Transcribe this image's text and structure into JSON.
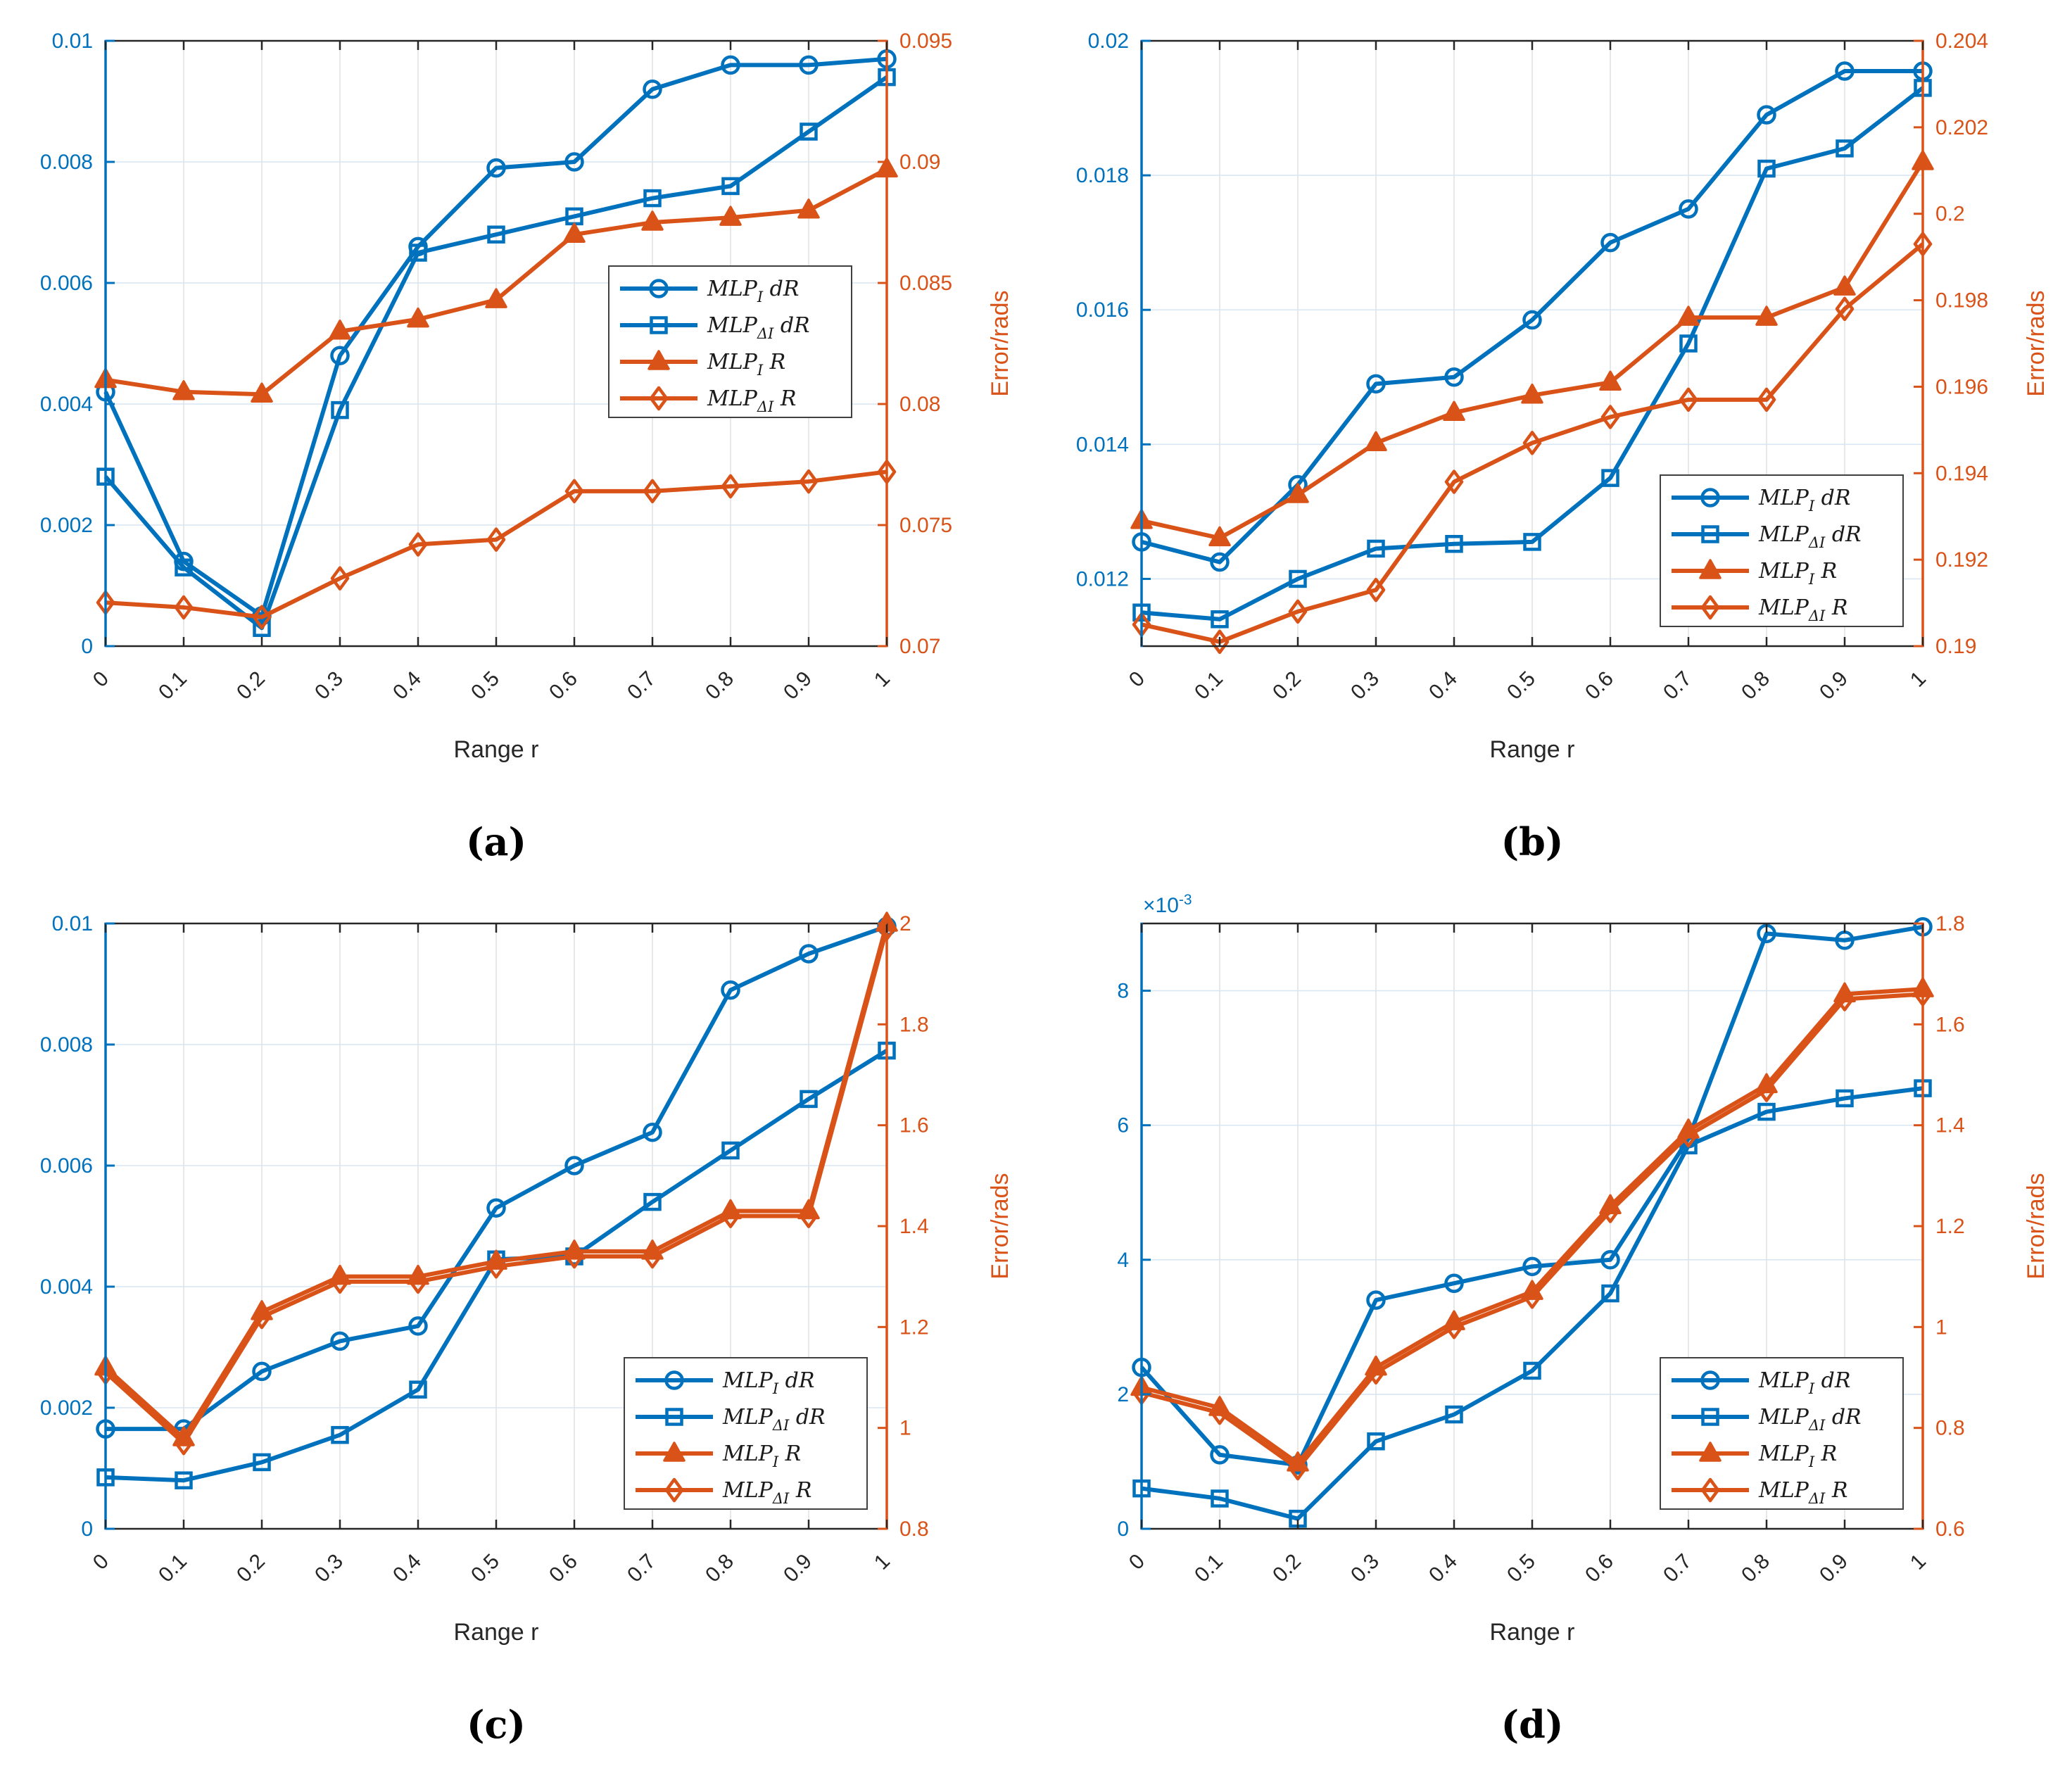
{
  "page": {
    "background": "#FFFFFF",
    "description": "Four dual-axis MATLAB-style line plots comparing MLP errors over range r",
    "colors": {
      "left_axis_blue": "#0072BD",
      "right_axis_orange": "#D95319",
      "x_tick_color": "#262626"
    }
  },
  "legend_labels": [
    {
      "base": "MLP",
      "sub": "I",
      "rest": "dR"
    },
    {
      "base": "MLP",
      "sub": "ΔI",
      "rest": "dR"
    },
    {
      "base": "MLP",
      "sub": "I",
      "rest": "R"
    },
    {
      "base": "MLP",
      "sub": "ΔI",
      "rest": "R"
    }
  ],
  "chart_data": [
    {
      "id": "a",
      "caption": "(a)",
      "type": "line",
      "xlabel": "Range r",
      "ylabel_right": "Error/rads",
      "x": [
        0,
        0.1,
        0.2,
        0.3,
        0.4,
        0.5,
        0.6,
        0.7,
        0.8,
        0.9,
        1
      ],
      "x_tick_labels": [
        "0",
        "0.1",
        "0.2",
        "0.3",
        "0.4",
        "0.5",
        "0.6",
        "0.7",
        "0.8",
        "0.9",
        "1"
      ],
      "left_axis": {
        "color": "#0072BD",
        "lim": [
          0,
          0.01
        ],
        "ticks": [
          0,
          0.002,
          0.004,
          0.006,
          0.008,
          0.01
        ],
        "tick_labels": [
          "0",
          "0.002",
          "0.004",
          "0.006",
          "0.008",
          "0.01"
        ],
        "multiplier": ""
      },
      "right_axis": {
        "color": "#D95319",
        "lim": [
          0.07,
          0.095
        ],
        "ticks": [
          0.07,
          0.075,
          0.08,
          0.085,
          0.09,
          0.095
        ],
        "tick_labels": [
          "0.07",
          "0.075",
          "0.08",
          "0.085",
          "0.09",
          "0.095"
        ]
      },
      "legend_position": "right-center",
      "series": [
        {
          "name": "MLP_I dR",
          "legend_index": 0,
          "axis": "left",
          "marker": "circle",
          "color": "#0072BD",
          "values": [
            0.0042,
            0.0014,
            0.0005,
            0.0048,
            0.0066,
            0.0079,
            0.008,
            0.0092,
            0.0096,
            0.0096,
            0.0097
          ]
        },
        {
          "name": "MLP_ΔI dR",
          "legend_index": 1,
          "axis": "left",
          "marker": "square",
          "color": "#0072BD",
          "values": [
            0.0028,
            0.0013,
            0.0003,
            0.0039,
            0.0065,
            0.0068,
            0.0071,
            0.0074,
            0.0076,
            0.0085,
            0.0094
          ]
        },
        {
          "name": "MLP_I R",
          "legend_index": 2,
          "axis": "right",
          "marker": "triangle",
          "color": "#D95319",
          "values": [
            0.081,
            0.0805,
            0.0804,
            0.083,
            0.0835,
            0.0843,
            0.087,
            0.0875,
            0.0877,
            0.088,
            0.0897
          ]
        },
        {
          "name": "MLP_ΔI R",
          "legend_index": 3,
          "axis": "right",
          "marker": "diamond",
          "color": "#D95319",
          "values": [
            0.0718,
            0.0716,
            0.0712,
            0.0728,
            0.0742,
            0.0744,
            0.0764,
            0.0764,
            0.0766,
            0.0768,
            0.0772
          ]
        }
      ]
    },
    {
      "id": "b",
      "caption": "(b)",
      "type": "line",
      "xlabel": "Range r",
      "ylabel_right": "Error/rads",
      "x": [
        0,
        0.1,
        0.2,
        0.3,
        0.4,
        0.5,
        0.6,
        0.7,
        0.8,
        0.9,
        1
      ],
      "x_tick_labels": [
        "0",
        "0.1",
        "0.2",
        "0.3",
        "0.4",
        "0.5",
        "0.6",
        "0.7",
        "0.8",
        "0.9",
        "1"
      ],
      "left_axis": {
        "color": "#0072BD",
        "lim": [
          0.011,
          0.02
        ],
        "ticks": [
          0.012,
          0.014,
          0.016,
          0.018,
          0.02
        ],
        "tick_labels": [
          "0.012",
          "0.014",
          "0.016",
          "0.018",
          "0.02"
        ],
        "multiplier": ""
      },
      "right_axis": {
        "color": "#D95319",
        "lim": [
          0.19,
          0.204
        ],
        "ticks": [
          0.19,
          0.192,
          0.194,
          0.196,
          0.198,
          0.2,
          0.202,
          0.204
        ],
        "tick_labels": [
          "0.19",
          "0.192",
          "0.194",
          "0.196",
          "0.198",
          "0.2",
          "0.202",
          "0.204"
        ]
      },
      "legend_position": "bottom-right",
      "series": [
        {
          "name": "MLP_I dR",
          "legend_index": 0,
          "axis": "left",
          "marker": "circle",
          "color": "#0072BD",
          "values": [
            0.01255,
            0.01225,
            0.0134,
            0.0149,
            0.015,
            0.01585,
            0.017,
            0.0175,
            0.0189,
            0.01955,
            0.01955
          ]
        },
        {
          "name": "MLP_ΔI dR",
          "legend_index": 1,
          "axis": "left",
          "marker": "square",
          "color": "#0072BD",
          "values": [
            0.0115,
            0.0114,
            0.012,
            0.01245,
            0.01252,
            0.01255,
            0.0135,
            0.0155,
            0.0181,
            0.0184,
            0.0193
          ]
        },
        {
          "name": "MLP_I R",
          "legend_index": 2,
          "axis": "right",
          "marker": "triangle",
          "color": "#D95319",
          "values": [
            0.1929,
            0.1925,
            0.1935,
            0.1947,
            0.1954,
            0.1958,
            0.1961,
            0.1976,
            0.1976,
            0.1983,
            0.2012
          ]
        },
        {
          "name": "MLP_ΔI R",
          "legend_index": 3,
          "axis": "right",
          "marker": "diamond",
          "color": "#D95319",
          "values": [
            0.1905,
            0.1901,
            0.1908,
            0.1913,
            0.1938,
            0.1947,
            0.1953,
            0.1957,
            0.1957,
            0.1978,
            0.1993
          ]
        }
      ]
    },
    {
      "id": "c",
      "caption": "(c)",
      "type": "line",
      "xlabel": "Range r",
      "ylabel_right": "Error/rads",
      "x": [
        0,
        0.1,
        0.2,
        0.3,
        0.4,
        0.5,
        0.6,
        0.7,
        0.8,
        0.9,
        1
      ],
      "x_tick_labels": [
        "0",
        "0.1",
        "0.2",
        "0.3",
        "0.4",
        "0.5",
        "0.6",
        "0.7",
        "0.8",
        "0.9",
        "1"
      ],
      "left_axis": {
        "color": "#0072BD",
        "lim": [
          0,
          0.01
        ],
        "ticks": [
          0,
          0.002,
          0.004,
          0.006,
          0.008,
          0.01
        ],
        "tick_labels": [
          "0",
          "0.002",
          "0.004",
          "0.006",
          "0.008",
          "0.01"
        ],
        "multiplier": ""
      },
      "right_axis": {
        "color": "#D95319",
        "lim": [
          0.8,
          2
        ],
        "ticks": [
          0.8,
          1,
          1.2,
          1.4,
          1.6,
          1.8,
          2
        ],
        "tick_labels": [
          "0.8",
          "1",
          "1.2",
          "1.4",
          "1.6",
          "1.8",
          "2"
        ]
      },
      "legend_position": "bottom-right",
      "series": [
        {
          "name": "MLP_I dR",
          "legend_index": 0,
          "axis": "left",
          "marker": "circle",
          "color": "#0072BD",
          "values": [
            0.00165,
            0.00165,
            0.0026,
            0.0031,
            0.00335,
            0.0053,
            0.006,
            0.00655,
            0.0089,
            0.0095,
            0.00995
          ]
        },
        {
          "name": "MLP_ΔI dR",
          "legend_index": 1,
          "axis": "left",
          "marker": "square",
          "color": "#0072BD",
          "values": [
            0.00085,
            0.0008,
            0.0011,
            0.00155,
            0.0023,
            0.00445,
            0.0045,
            0.0054,
            0.00625,
            0.0071,
            0.0079
          ]
        },
        {
          "name": "MLP_I R",
          "legend_index": 2,
          "axis": "right",
          "marker": "triangle",
          "color": "#D95319",
          "values": [
            1.12,
            0.98,
            1.23,
            1.3,
            1.3,
            1.33,
            1.35,
            1.35,
            1.43,
            1.43,
            2.0
          ]
        },
        {
          "name": "MLP_ΔI R",
          "legend_index": 3,
          "axis": "right",
          "marker": "diamond",
          "color": "#D95319",
          "values": [
            1.11,
            0.97,
            1.22,
            1.29,
            1.29,
            1.32,
            1.34,
            1.34,
            1.42,
            1.42,
            1.99
          ]
        }
      ]
    },
    {
      "id": "d",
      "caption": "(d)",
      "type": "line",
      "xlabel": "Range r",
      "ylabel_right": "Error/rads",
      "x": [
        0,
        0.1,
        0.2,
        0.3,
        0.4,
        0.5,
        0.6,
        0.7,
        0.8,
        0.9,
        1
      ],
      "x_tick_labels": [
        "0",
        "0.1",
        "0.2",
        "0.3",
        "0.4",
        "0.5",
        "0.6",
        "0.7",
        "0.8",
        "0.9",
        "1"
      ],
      "left_axis": {
        "color": "#0072BD",
        "lim": [
          0,
          0.009
        ],
        "ticks": [
          0,
          0.002,
          0.004,
          0.006,
          0.008
        ],
        "tick_labels": [
          "0",
          "2",
          "4",
          "6",
          "8"
        ],
        "multiplier": "×10^-3"
      },
      "right_axis": {
        "color": "#D95319",
        "lim": [
          0.6,
          1.8
        ],
        "ticks": [
          0.6,
          0.8,
          1,
          1.2,
          1.4,
          1.6,
          1.8
        ],
        "tick_labels": [
          "0.6",
          "0.8",
          "1",
          "1.2",
          "1.4",
          "1.6",
          "1.8"
        ]
      },
      "legend_position": "bottom-right",
      "series": [
        {
          "name": "MLP_I dR",
          "legend_index": 0,
          "axis": "left",
          "marker": "circle",
          "color": "#0072BD",
          "values": [
            0.0024,
            0.0011,
            0.00095,
            0.0034,
            0.00365,
            0.0039,
            0.004,
            0.0058,
            0.00885,
            0.00875,
            0.00895
          ]
        },
        {
          "name": "MLP_ΔI dR",
          "legend_index": 1,
          "axis": "left",
          "marker": "square",
          "color": "#0072BD",
          "values": [
            0.0006,
            0.00045,
            0.00015,
            0.0013,
            0.0017,
            0.00235,
            0.0035,
            0.0057,
            0.0062,
            0.0064,
            0.00655
          ]
        },
        {
          "name": "MLP_I R",
          "legend_index": 2,
          "axis": "right",
          "marker": "triangle",
          "color": "#D95319",
          "values": [
            0.88,
            0.84,
            0.73,
            0.92,
            1.01,
            1.07,
            1.24,
            1.39,
            1.48,
            1.66,
            1.67
          ]
        },
        {
          "name": "MLP_ΔI R",
          "legend_index": 3,
          "axis": "right",
          "marker": "diamond",
          "color": "#D95319",
          "values": [
            0.87,
            0.83,
            0.72,
            0.91,
            1.0,
            1.06,
            1.23,
            1.38,
            1.47,
            1.65,
            1.66
          ]
        }
      ]
    }
  ]
}
